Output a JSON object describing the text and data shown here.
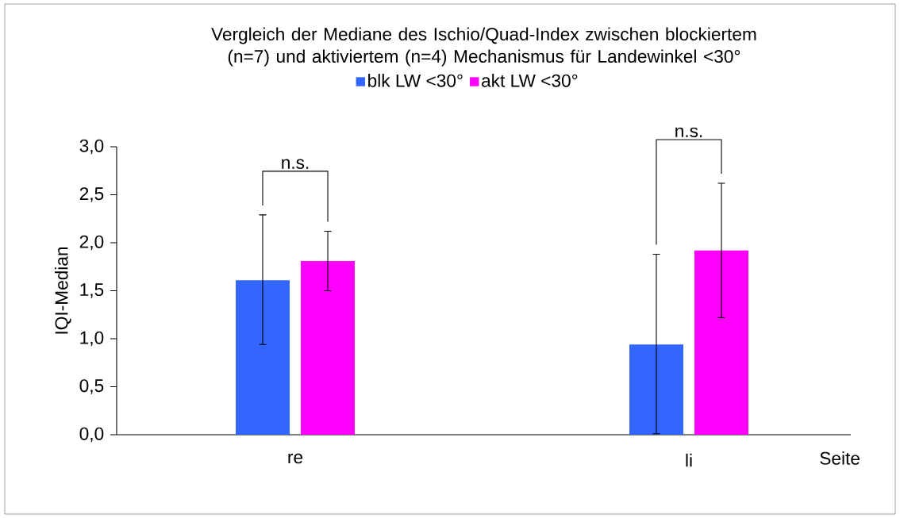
{
  "chart_data": {
    "type": "bar",
    "title": "Vergleich der Mediane des Ischio/Quad-Index zwischen blockiertem (n=7) und aktiviertem (n=4) Mechanismus für Landewinkel <30°",
    "xlabel": "Seite",
    "ylabel": "IQI-Median",
    "categories": [
      "re",
      "li"
    ],
    "series": [
      {
        "name": "blk LW <30°",
        "color": "#3366ff",
        "values": [
          1.61,
          0.94
        ],
        "errors": [
          [
            0.94,
            2.29
          ],
          [
            0.01,
            1.88
          ]
        ]
      },
      {
        "name": "akt LW <30°",
        "color": "#ff00ff",
        "values": [
          1.81,
          1.92
        ],
        "errors": [
          [
            1.5,
            2.12
          ],
          [
            1.22,
            2.62
          ]
        ]
      }
    ],
    "ylim": [
      0,
      3.0
    ],
    "yticks": [
      {
        "value": 0,
        "label": "0,0"
      },
      {
        "value": 0.5,
        "label": "0,5"
      },
      {
        "value": 1.0,
        "label": "1,0"
      },
      {
        "value": 1.5,
        "label": "1,5"
      },
      {
        "value": 2.0,
        "label": "2,0"
      },
      {
        "value": 2.5,
        "label": "2,5"
      },
      {
        "value": 3.0,
        "label": "3,0"
      }
    ],
    "legend": "top",
    "annotations": [
      "n.s.",
      "n.s."
    ]
  }
}
